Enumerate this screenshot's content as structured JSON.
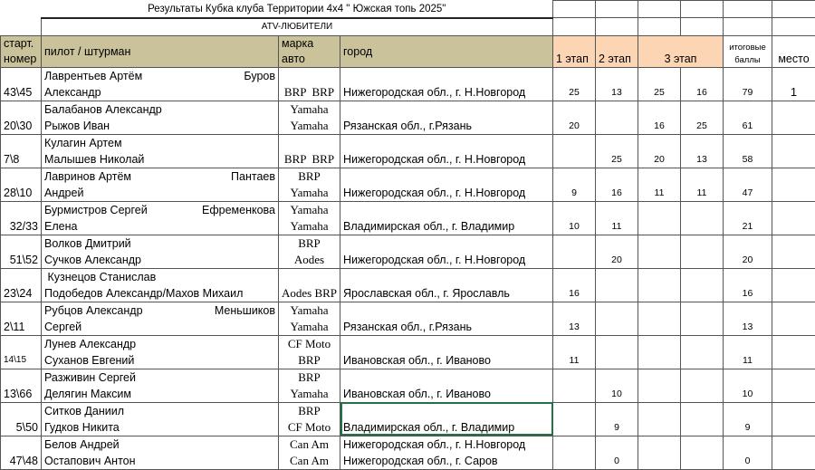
{
  "title": "Результаты  Кубка клуба Территории 4х4 \" Южская топь 2025\"",
  "category": "ATV-ЛЮБИТЕЛИ",
  "headers": {
    "start_number": [
      "старт.",
      "номер"
    ],
    "crew": "пилот / штурман",
    "car": [
      "марка",
      "авто"
    ],
    "city": "город",
    "stage1": "1 этап",
    "stage2": "2 этап",
    "stage3": "3 этап",
    "total": [
      "итоговые",
      "баллы"
    ],
    "place": "место"
  },
  "colors": {
    "header_bg": "#c9c29a",
    "stage_bg": "#fcd5b4",
    "selection": "#217346"
  },
  "rows": [
    {
      "num": "43\\45",
      "crew1": "Лаврентьев Артём",
      "crew1r": "Буров",
      "crew2": "Александр",
      "car1": "",
      "car2": "BRP  BRP",
      "city1": "",
      "city2": "Нижегородская обл., г. Н.Новгород",
      "s1": "25",
      "s2": "13",
      "s3a": "25",
      "s3b": "16",
      "total": "79",
      "place": "1"
    },
    {
      "num": "20\\30",
      "crew1": "Балабанов Александр",
      "crew1r": "",
      "crew2": "Рыжов Иван",
      "car1": "Yamaha",
      "car2": "Yamaha",
      "city1": "",
      "city2": "Рязанская обл., г.Рязань",
      "s1": "20",
      "s2": "",
      "s3a": "16",
      "s3b": "25",
      "total": "61",
      "place": ""
    },
    {
      "num": "7\\8",
      "crew1": "Кулагин Артем",
      "crew1r": "",
      "crew2": "Малышев Николай",
      "car1": "",
      "car2": "BRP  BRP",
      "city1": "",
      "city2": "Нижегородская обл., г. Н.Новгород",
      "s1": "",
      "s2": "25",
      "s3a": "20",
      "s3b": "13",
      "total": "58",
      "place": ""
    },
    {
      "num": "28\\10",
      "crew1": "Лавринов Артём",
      "crew1r": "Пантаев",
      "crew2": "Андрей",
      "car1": "BRP",
      "car2": "Yamaha",
      "city1": "",
      "city2": "Нижегородская обл., г. Н.Новгород",
      "s1": "9",
      "s2": "16",
      "s3a": "11",
      "s3b": "11",
      "total": "47",
      "place": ""
    },
    {
      "num": "32/33",
      "crew1": "Бурмистров Сергей",
      "crew1r": "Ефременкова",
      "crew2": "Елена",
      "car1": "Yamaha",
      "car2": "Yamaha",
      "city1": "",
      "city2": "Владимирская обл., г. Владимир",
      "s1": "10",
      "s2": "11",
      "s3a": "",
      "s3b": "",
      "total": "21",
      "place": ""
    },
    {
      "num": "51\\52",
      "crew1": "Волков Дмитрий",
      "crew1r": "",
      "crew2": "Сучков Александр",
      "car1": "BRP",
      "car2": "Aodes",
      "city1": "",
      "city2": "Нижегородская обл., г. Н.Новгород",
      "s1": "",
      "s2": "20",
      "s3a": "",
      "s3b": "",
      "total": "20",
      "place": ""
    },
    {
      "num": "23\\24",
      "crew1": " Кузнецов Станислав",
      "crew1r": "",
      "crew2": "Подобедов Александр/Махов Михаил",
      "car1": "",
      "car2": "Aodes BRP",
      "city1": "",
      "city2": "Ярославская обл., г. Ярославль",
      "s1": "16",
      "s2": "",
      "s3a": "",
      "s3b": "",
      "total": "16",
      "place": ""
    },
    {
      "num": "2\\11",
      "crew1": "Рубцов Александр",
      "crew1r": "Меньшиков",
      "crew2": "Сергей",
      "car1": "Yamaha",
      "car2": "Yamaha",
      "city1": "",
      "city2": "Рязанская обл., г.Рязань",
      "s1": "13",
      "s2": "",
      "s3a": "",
      "s3b": "",
      "total": "13",
      "place": ""
    },
    {
      "num": "14\\15",
      "crew1": "Лунев Александр",
      "crew1r": "",
      "crew2": "Суханов Евгений",
      "car1": "CF Moto",
      "car2": "BRP",
      "city1": "",
      "city2": "Ивановская обл., г. Иваново",
      "s1": "11",
      "s2": "",
      "s3a": "",
      "s3b": "",
      "total": "11",
      "place": ""
    },
    {
      "num": "13\\66",
      "crew1": "Разживин Сергей",
      "crew1r": "",
      "crew2": "Делягин Максим",
      "car1": "BRP",
      "car2": "Yamaha",
      "city1": "",
      "city2": "Ивановская обл., г. Иваново",
      "s1": "",
      "s2": "10",
      "s3a": "",
      "s3b": "",
      "total": "10",
      "place": ""
    },
    {
      "num": "5\\50",
      "crew1": "Ситков Даниил",
      "crew1r": "",
      "crew2": "Гудков Никита",
      "car1": "BRP",
      "car2": "CF Moto",
      "city1": "",
      "city2": "Владимирская обл., г. Владимир",
      "s1": "",
      "s2": "9",
      "s3a": "",
      "s3b": "",
      "total": "9",
      "place": ""
    },
    {
      "num": "47\\48",
      "crew1": "Белов Андрей",
      "crew1r": "",
      "crew2": "Остапович Антон",
      "car1": "Can Am",
      "car2": "Can Am",
      "city1": "Нижегородская обл., г. Н.Новгород",
      "city2": "Нижегородская обл., г. Саров",
      "s1": "",
      "s2": "0",
      "s3a": "",
      "s3b": "",
      "total": "0",
      "place": ""
    }
  ]
}
